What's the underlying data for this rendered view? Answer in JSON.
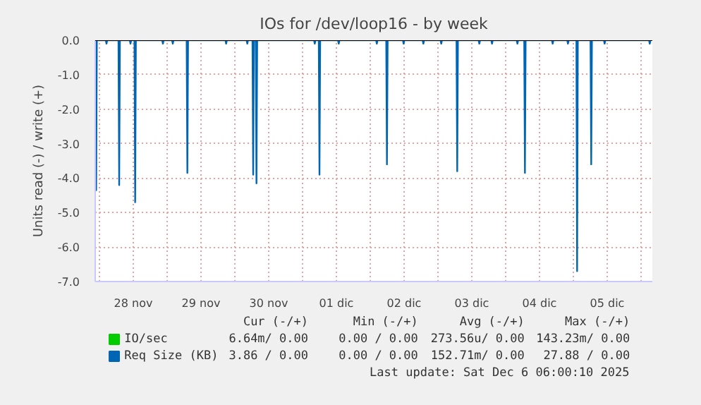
{
  "chart_data": {
    "type": "line",
    "title": "IOs for /dev/loop16 - by week",
    "ylabel": "Units read (-) / write (+)",
    "series": [
      {
        "name": "IO/sec",
        "color": "#00cc00"
      },
      {
        "name": "Req Size (KB)",
        "color": "#0066b3",
        "x": [
          "2025-11-27T22:35",
          "2025-11-27T22:50",
          "2025-11-27T23:05",
          "2025-11-28T02:15",
          "2025-11-28T02:30",
          "2025-11-28T02:45",
          "2025-11-28T06:45",
          "2025-11-28T07:00",
          "2025-11-28T07:15",
          "2025-11-28T10:45",
          "2025-11-28T11:00",
          "2025-11-28T11:15",
          "2025-11-28T12:25",
          "2025-11-28T12:40",
          "2025-11-28T12:55",
          "2025-11-28T22:15",
          "2025-11-28T22:30",
          "2025-11-28T22:45",
          "2025-11-29T01:45",
          "2025-11-29T02:00",
          "2025-11-29T02:15",
          "2025-11-29T06:55",
          "2025-11-29T07:10",
          "2025-11-29T07:25",
          "2025-11-29T20:40",
          "2025-11-29T20:55",
          "2025-11-29T21:10",
          "2025-11-30T04:10",
          "2025-11-30T04:25",
          "2025-11-30T04:40",
          "2025-11-30T06:15",
          "2025-11-30T06:30",
          "2025-11-30T06:45",
          "2025-11-30T07:25",
          "2025-11-30T07:40",
          "2025-11-30T07:55",
          "2025-12-01T04:05",
          "2025-12-01T04:20",
          "2025-12-01T04:35",
          "2025-12-01T05:45",
          "2025-12-01T06:00",
          "2025-12-01T06:15",
          "2025-12-01T12:35",
          "2025-12-01T12:50",
          "2025-12-01T13:05",
          "2025-12-02T02:05",
          "2025-12-02T02:20",
          "2025-12-02T02:35",
          "2025-12-02T05:40",
          "2025-12-02T05:55",
          "2025-12-02T06:10",
          "2025-12-02T11:35",
          "2025-12-02T11:50",
          "2025-12-02T12:05",
          "2025-12-02T18:35",
          "2025-12-02T18:50",
          "2025-12-02T19:05",
          "2025-12-03T00:55",
          "2025-12-03T01:10",
          "2025-12-03T01:25",
          "2025-12-03T06:35",
          "2025-12-03T06:50",
          "2025-12-03T07:05",
          "2025-12-03T14:25",
          "2025-12-03T14:40",
          "2025-12-03T14:55",
          "2025-12-03T18:55",
          "2025-12-03T19:10",
          "2025-12-03T19:25",
          "2025-12-04T03:55",
          "2025-12-04T04:10",
          "2025-12-04T04:25",
          "2025-12-04T06:35",
          "2025-12-04T06:50",
          "2025-12-04T07:05",
          "2025-12-04T16:25",
          "2025-12-04T16:40",
          "2025-12-04T16:55",
          "2025-12-04T21:50",
          "2025-12-04T22:05",
          "2025-12-04T22:20",
          "2025-12-05T01:05",
          "2025-12-05T01:20",
          "2025-12-05T01:35",
          "2025-12-05T06:05",
          "2025-12-05T06:20",
          "2025-12-05T06:35",
          "2025-12-05T10:50",
          "2025-12-05T11:05",
          "2025-12-05T11:20",
          "2025-12-06T02:50",
          "2025-12-06T03:05",
          "2025-12-06T03:20"
        ],
        "values": [
          0,
          -4.35,
          0,
          0,
          -0.1,
          0,
          0,
          -4.2,
          0,
          0,
          -0.1,
          0,
          0,
          -4.7,
          0,
          0,
          -0.1,
          0,
          0,
          -0.1,
          0,
          0,
          -3.85,
          0,
          0,
          -0.1,
          0,
          0,
          -0.1,
          0,
          0,
          -3.9,
          0,
          0,
          -4.15,
          0,
          0,
          -0.1,
          0,
          0,
          -3.9,
          0,
          0,
          -0.1,
          0,
          0,
          -0.1,
          0,
          0,
          -3.6,
          0,
          0,
          -0.1,
          0,
          0,
          -0.1,
          0,
          0,
          -0.1,
          0,
          0,
          -3.8,
          0,
          0,
          -0.1,
          0,
          0,
          -0.1,
          0,
          0,
          -0.1,
          0,
          0,
          -3.85,
          0,
          0,
          -0.1,
          0,
          0,
          -0.1,
          0,
          0,
          -6.7,
          0,
          0,
          -3.6,
          0,
          0,
          -0.1,
          0,
          0,
          -0.1,
          0
        ]
      }
    ],
    "xlim": [
      "2025-11-27T22:30",
      "2025-12-06T04:00"
    ],
    "xticks": [
      {
        "value": "2025-11-28T00:00",
        "label": null
      },
      {
        "value": "2025-11-28T12:00",
        "label": "28 nov"
      },
      {
        "value": "2025-11-29T00:00",
        "label": null
      },
      {
        "value": "2025-11-29T12:00",
        "label": "29 nov"
      },
      {
        "value": "2025-11-30T00:00",
        "label": null
      },
      {
        "value": "2025-11-30T12:00",
        "label": "30 nov"
      },
      {
        "value": "2025-12-01T00:00",
        "label": null
      },
      {
        "value": "2025-12-01T12:00",
        "label": "01 dic"
      },
      {
        "value": "2025-12-02T00:00",
        "label": null
      },
      {
        "value": "2025-12-02T12:00",
        "label": "02 dic"
      },
      {
        "value": "2025-12-03T00:00",
        "label": null
      },
      {
        "value": "2025-12-03T12:00",
        "label": "03 dic"
      },
      {
        "value": "2025-12-04T00:00",
        "label": null
      },
      {
        "value": "2025-12-04T12:00",
        "label": "04 dic"
      },
      {
        "value": "2025-12-05T00:00",
        "label": null
      },
      {
        "value": "2025-12-05T12:00",
        "label": "05 dic"
      },
      {
        "value": "2025-12-06T00:00",
        "label": null
      }
    ],
    "ylim": [
      -7,
      0
    ],
    "yticks": [
      {
        "value": -7,
        "label": "-7.0"
      },
      {
        "value": -6,
        "label": "-6.0"
      },
      {
        "value": -5,
        "label": "-5.0"
      },
      {
        "value": -4,
        "label": "-4.0"
      },
      {
        "value": -3,
        "label": "-3.0"
      },
      {
        "value": -2,
        "label": "-2.0"
      },
      {
        "value": -1,
        "label": "-1.0"
      },
      {
        "value": 0,
        "label": "0.0"
      }
    ],
    "grid": true,
    "legend": "bottom left",
    "ref_lines": [
      {
        "axis": "y",
        "value": 0,
        "color": "#000000"
      }
    ],
    "annotations": [
      "Cur (-/+)",
      "Min (-/+)",
      "Avg (-/+)",
      "Max (-/+)",
      "6.64m/ 0.00",
      "0.00 / 0.00",
      "273.56u/ 0.00",
      "143.23m/ 0.00",
      "3.86 / 0.00",
      "0.00 / 0.00",
      "152.71m/ 0.00",
      "27.88 / 0.00",
      "Last update: Sat Dec  6 06:00:10 2025"
    ]
  }
}
